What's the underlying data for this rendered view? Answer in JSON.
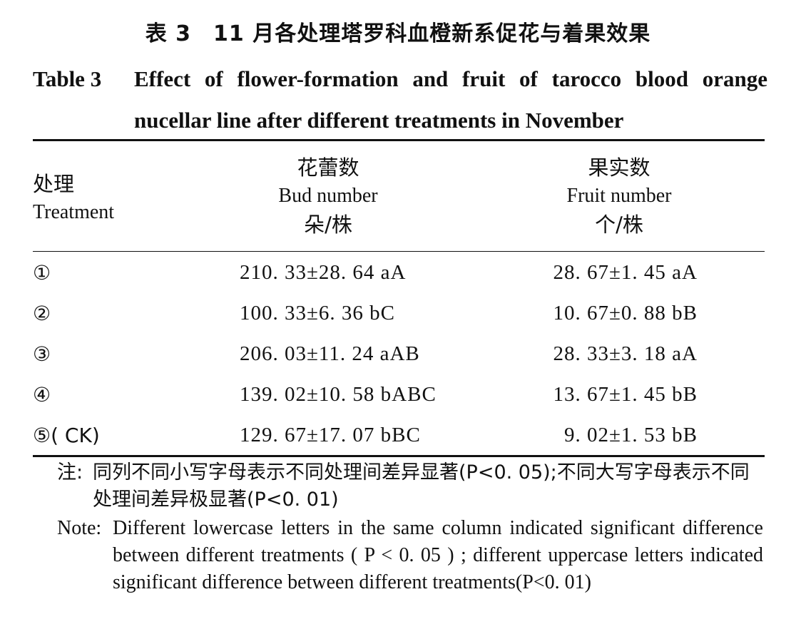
{
  "title_cn": "表 3　11 月各处理塔罗科血橙新系促花与着果效果",
  "title_en_label": "Table 3",
  "title_en_text": "Effect of flower-formation and fruit of tarocco blood orange nucellar line after different treatments in November",
  "headers": {
    "treatment_cn": "处理",
    "treatment_en": "Treatment",
    "bud_cn": "花蕾数",
    "bud_en": "Bud number",
    "bud_unit": "朵/株",
    "fruit_cn": "果实数",
    "fruit_en": "Fruit number",
    "fruit_unit": "个/株"
  },
  "rows": [
    {
      "treatment": "①",
      "bud": "210. 33±28. 64 aA",
      "fruit": "28. 67±1. 45 aA"
    },
    {
      "treatment": "②",
      "bud": "100. 33±6. 36 bC",
      "fruit": "10. 67±0. 88 bB"
    },
    {
      "treatment": "③",
      "bud": "206. 03±11. 24 aAB",
      "fruit": "28. 33±3. 18 aA"
    },
    {
      "treatment": "④",
      "bud": "139. 02±10. 58 bABC",
      "fruit": "13. 67±1. 45 bB"
    },
    {
      "treatment": "⑤( CK)",
      "bud": "129. 67±17. 07 bBC",
      "fruit": "9. 02±1. 53 bB"
    }
  ],
  "note_cn_label": "注:",
  "note_cn_text": "同列不同小写字母表示不同处理间差异显著(P<0. 05);不同大写字母表示不同处理间差异极显著(P<0. 01)",
  "note_en_label": "Note:",
  "note_en_text": "Different lowercase letters in the same column indicated significant difference between different treatments ( P < 0. 05 ) ; different uppercase letters indicated significant difference between different treatments(P<0. 01)"
}
